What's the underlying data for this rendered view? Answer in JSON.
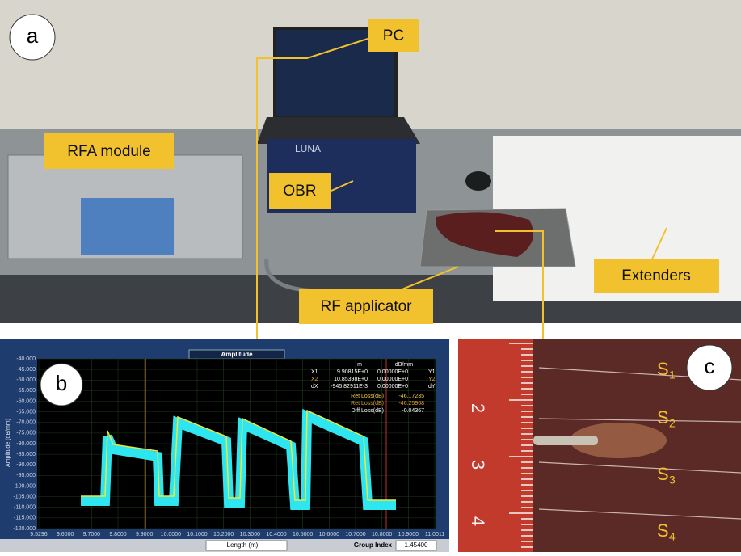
{
  "labels": {
    "a": "a",
    "b": "b",
    "c": "c"
  },
  "callouts": [
    "PC",
    "RFA module",
    "OBR",
    "RF applicator",
    "Extenders"
  ],
  "devices": {
    "obr_brand": "LUNA"
  },
  "plot": {
    "header": "Amplitude",
    "y_axis_label": "Amplitude (dB/mm)",
    "y_ticks": [
      "-40.000",
      "-45.000",
      "-50.000",
      "-55.000",
      "-60.000",
      "-65.000",
      "-70.000",
      "-75.000",
      "-80.000",
      "-85.000",
      "-90.000",
      "-95.000",
      "-100.000",
      "-105.000",
      "-110.000",
      "-115.000",
      "-120.000"
    ],
    "x_ticks": [
      "9.5296",
      "9.6000",
      "9.7000",
      "9.8000",
      "9.9000",
      "10.0000",
      "10.1000",
      "10.2000",
      "10.3000",
      "10.4000",
      "10.5000",
      "10.6000",
      "10.7000",
      "10.8000",
      "10.9000",
      "11.0011"
    ],
    "readout": {
      "columns": [
        "m",
        "dB/mm"
      ],
      "rows": [
        [
          "X1",
          "9.90815E+0",
          "0.00000E+0",
          "Y1"
        ],
        [
          "X2",
          "10.85398E+0",
          "0.00000E+0",
          "Y2"
        ],
        [
          "dX",
          "-945.82911E-3",
          "0.00000E+0",
          "dY"
        ]
      ],
      "losses": [
        [
          "Ret Loss(dB)",
          "-46.17235"
        ],
        [
          "Ret Loss(dB)",
          "-46.25968"
        ],
        [
          "Diff Loss(dB)",
          "-0.04367"
        ]
      ]
    },
    "x_axis_label": "Length (m)",
    "group_index_label": "Group Index",
    "group_index_value": "1.45400"
  },
  "sample": {
    "ruler_numbers": [
      "2",
      "3",
      "4"
    ],
    "sections": [
      {
        "letter": "S",
        "index": "1"
      },
      {
        "letter": "S",
        "index": "2"
      },
      {
        "letter": "S",
        "index": "3"
      },
      {
        "letter": "S",
        "index": "4"
      }
    ]
  }
}
